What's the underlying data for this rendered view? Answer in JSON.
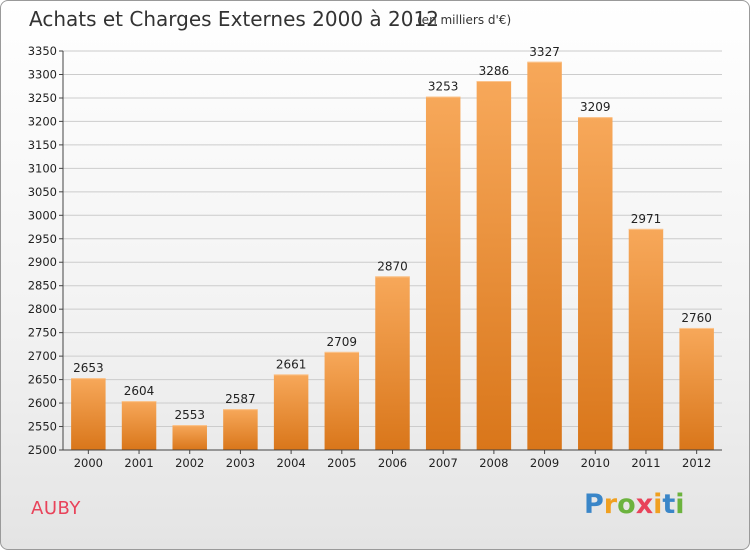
{
  "title": "Achats et Charges Externes 2000 à 2012",
  "subtitle": "(en milliers d'€)",
  "place": "AUBY",
  "brand": {
    "letters": [
      {
        "char": "P",
        "color": "#3a86c8"
      },
      {
        "char": "r",
        "color": "#f0a020"
      },
      {
        "char": "o",
        "color": "#6cb33e"
      },
      {
        "char": "x",
        "color": "#e8435a"
      },
      {
        "char": "i",
        "color": "#f0a020"
      },
      {
        "char": "t",
        "color": "#3a86c8"
      },
      {
        "char": "i",
        "color": "#6cb33e"
      }
    ]
  },
  "colors": {
    "bar_top": "#f7a85a",
    "bar_bottom": "#d9761a",
    "grid": "#cccccc",
    "axis": "#444444"
  },
  "chart_data": {
    "type": "bar",
    "title": "Achats et Charges Externes 2000 à 2012",
    "categories": [
      "2000",
      "2001",
      "2002",
      "2003",
      "2004",
      "2005",
      "2006",
      "2007",
      "2008",
      "2009",
      "2010",
      "2011",
      "2012"
    ],
    "values": [
      2653,
      2604,
      2553,
      2587,
      2661,
      2709,
      2870,
      3253,
      3286,
      3327,
      3209,
      2971,
      2760
    ],
    "ylim": [
      2500,
      3350
    ],
    "yticks": [
      2500,
      2550,
      2600,
      2650,
      2700,
      2750,
      2800,
      2850,
      2900,
      2950,
      3000,
      3050,
      3100,
      3150,
      3200,
      3250,
      3300,
      3350
    ],
    "grid": true,
    "data_labels": true
  }
}
